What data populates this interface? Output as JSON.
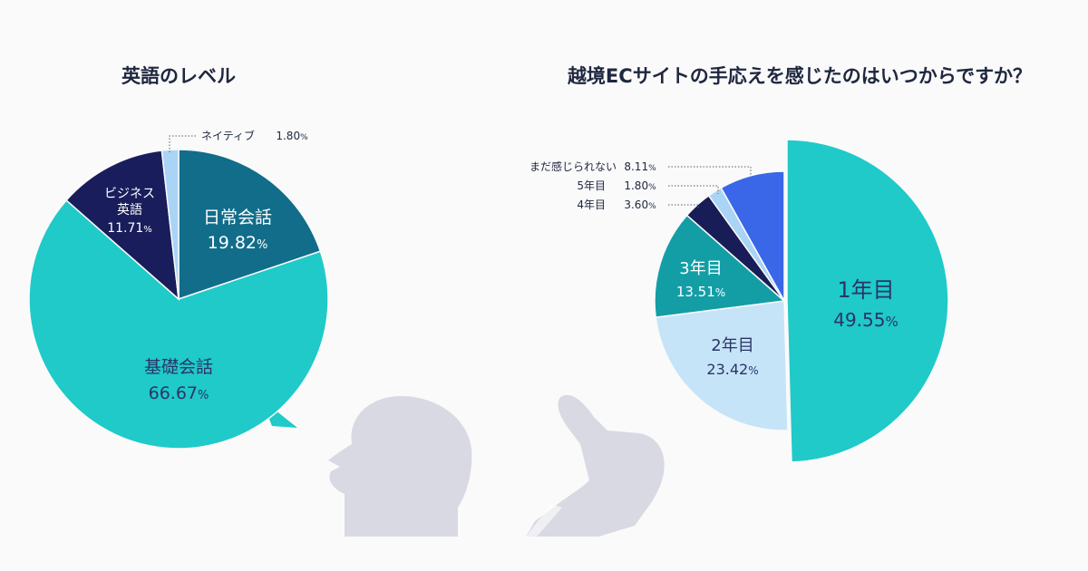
{
  "chart_data": [
    {
      "type": "pie",
      "title": "英語のレベル",
      "unit": "%",
      "slices": [
        {
          "label": "日常会話",
          "value": 19.82,
          "value_text": "19.82",
          "color": "#116d8a"
        },
        {
          "label": "基礎会話",
          "value": 66.67,
          "value_text": "66.67",
          "color": "#1fcac9"
        },
        {
          "label": "ビジネス英語",
          "value": 11.71,
          "value_text": "11.71",
          "color": "#191d5c"
        },
        {
          "label": "ネイティブ",
          "value": 1.8,
          "value_text": "1.80",
          "color": "#a9d4f5"
        }
      ]
    },
    {
      "type": "pie",
      "title": "越境ECサイトの手応えを感じたのはいつからですか？",
      "unit": "%",
      "slices": [
        {
          "label": "1年目",
          "value": 49.55,
          "value_text": "49.55",
          "color": "#1fcac9"
        },
        {
          "label": "2年目",
          "value": 23.42,
          "value_text": "23.42",
          "color": "#c6e4f7"
        },
        {
          "label": "3年目",
          "value": 13.51,
          "value_text": "13.51",
          "color": "#139ea6"
        },
        {
          "label": "4年目",
          "value": 3.6,
          "value_text": "3.60",
          "color": "#181d57"
        },
        {
          "label": "5年目",
          "value": 1.8,
          "value_text": "1.80",
          "color": "#a9d4f5"
        },
        {
          "label": "まだ感じられない",
          "value": 8.11,
          "value_text": "8.11",
          "color": "#3a66e8"
        }
      ]
    }
  ]
}
